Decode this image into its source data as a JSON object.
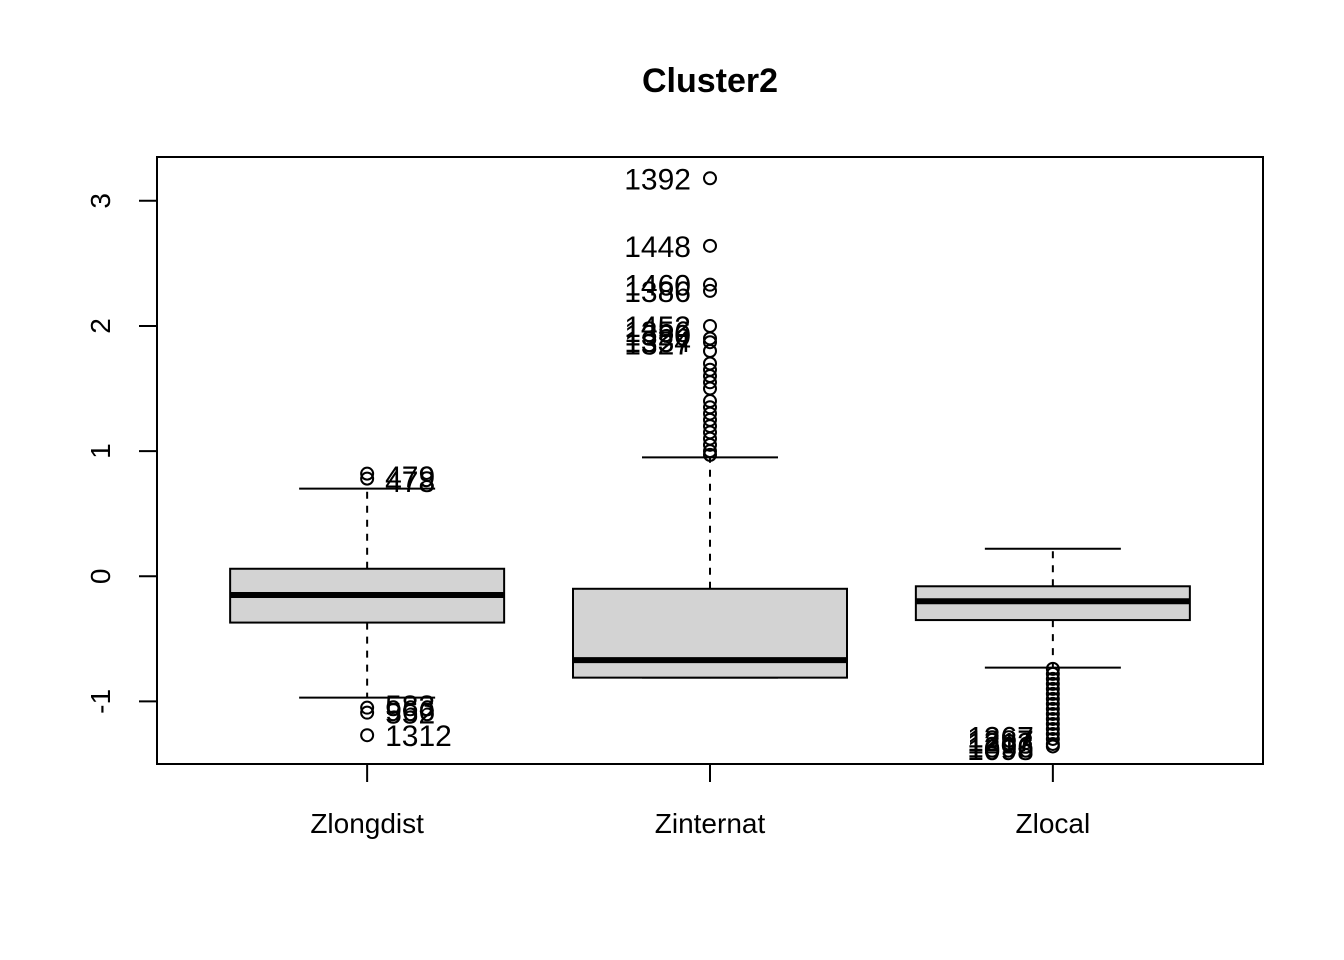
{
  "chart_data": {
    "type": "boxplot",
    "title": "Cluster2",
    "xlabel": "",
    "ylabel": "",
    "ylim": [
      -1.5,
      3.35
    ],
    "yticks": [
      -1,
      0,
      1,
      2,
      3
    ],
    "ytick_labels": [
      "-1",
      "0",
      "1",
      "2",
      "3"
    ],
    "grid": false,
    "box_fill": "#d3d3d3",
    "categories": [
      "Zlongdist",
      "Zinternat",
      "Zlocal"
    ],
    "boxes": [
      {
        "name": "Zlongdist",
        "whisker_low": -0.97,
        "q1": -0.37,
        "median": -0.15,
        "q3": 0.06,
        "whisker_high": 0.7,
        "outliers": [
          0.82,
          0.78,
          -1.05,
          -1.09,
          -1.27
        ],
        "outlier_labels": [
          {
            "text": "479",
            "y": 0.8
          },
          {
            "text": "478",
            "y": 0.76
          },
          {
            "text": "583",
            "y": -1.03
          },
          {
            "text": "966",
            "y": -1.07
          },
          {
            "text": "552",
            "y": -1.09
          },
          {
            "text": "1312",
            "y": -1.27
          }
        ]
      },
      {
        "name": "Zinternat",
        "whisker_low": -0.81,
        "q1": -0.81,
        "median": -0.67,
        "q3": -0.1,
        "whisker_high": 0.95,
        "outliers": [
          3.18,
          2.64,
          2.33,
          2.28,
          2.0,
          1.9,
          1.87,
          1.8,
          1.7,
          1.65,
          1.6,
          1.55,
          1.5,
          1.4,
          1.35,
          1.3,
          1.25,
          1.2,
          1.15,
          1.1,
          1.05,
          1.0,
          0.97
        ],
        "outlier_labels": [
          {
            "text": "1392",
            "y": 3.18
          },
          {
            "text": "1448",
            "y": 2.64
          },
          {
            "text": "1460",
            "y": 2.33
          },
          {
            "text": "1386",
            "y": 2.28
          },
          {
            "text": "1452",
            "y": 2.0
          },
          {
            "text": "1356",
            "y": 1.96
          },
          {
            "text": "1320",
            "y": 1.93
          },
          {
            "text": "1334",
            "y": 1.88
          },
          {
            "text": "1327",
            "y": 1.86
          }
        ]
      },
      {
        "name": "Zlocal",
        "whisker_low": -0.73,
        "q1": -0.35,
        "median": -0.2,
        "q3": -0.08,
        "whisker_high": 0.22,
        "outliers": [
          -0.74,
          -0.78,
          -0.82,
          -0.86,
          -0.9,
          -0.94,
          -0.98,
          -1.02,
          -1.06,
          -1.1,
          -1.14,
          -1.18,
          -1.22,
          -1.26,
          -1.3,
          -1.34,
          -1.36
        ],
        "outlier_labels": [
          {
            "text": "1267",
            "y": -1.28
          },
          {
            "text": "1287",
            "y": -1.31
          },
          {
            "text": "1213",
            "y": -1.33
          },
          {
            "text": "1396",
            "y": -1.36
          },
          {
            "text": "1098",
            "y": -1.38
          }
        ]
      }
    ]
  }
}
